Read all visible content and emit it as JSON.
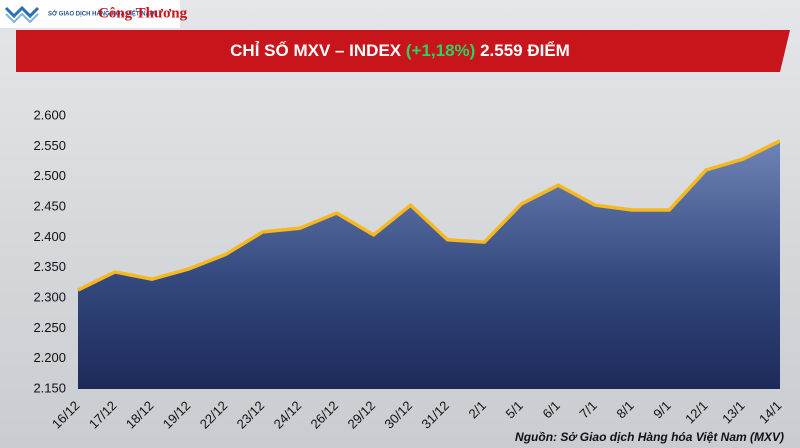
{
  "header": {
    "logo_text": "SỞ GIAO DỊCH HÀNG HÓA VIỆT NAM",
    "brand": "Công Thương"
  },
  "chart_data": {
    "type": "area",
    "title": "CHỈ SỐ MXV – INDEX",
    "change_label": "(+1,18%)",
    "value_label": "2.559 ĐIỂM",
    "categories": [
      "16/12",
      "17/12",
      "18/12",
      "19/12",
      "22/12",
      "23/12",
      "24/12",
      "26/12",
      "29/12",
      "30/12",
      "31/12",
      "2/1",
      "5/1",
      "6/1",
      "7/1",
      "8/1",
      "9/1",
      "12/1",
      "13/1",
      "14/1"
    ],
    "series": [
      {
        "name": "MXV-Index",
        "color": "#f6b81e",
        "values": [
          2313,
          2343,
          2331,
          2348,
          2372,
          2409,
          2415,
          2440,
          2404,
          2453,
          2396,
          2392,
          2455,
          2486,
          2453,
          2445,
          2445,
          2511,
          2529,
          2559
        ]
      }
    ],
    "ylim": [
      2150,
      2600
    ],
    "yticks": [
      {
        "value": 2150,
        "label": "2.150"
      },
      {
        "value": 2200,
        "label": "2.200"
      },
      {
        "value": 2250,
        "label": "2.250"
      },
      {
        "value": 2300,
        "label": "2.300"
      },
      {
        "value": 2350,
        "label": "2.350"
      },
      {
        "value": 2400,
        "label": "2.400"
      },
      {
        "value": 2450,
        "label": "2.450"
      },
      {
        "value": 2500,
        "label": "2.500"
      },
      {
        "value": 2550,
        "label": "2.550"
      },
      {
        "value": 2600,
        "label": "2.600"
      }
    ],
    "grid": false,
    "source": "Nguồn: Sở Giao dịch Hàng hóa Việt Nam (MXV)"
  }
}
